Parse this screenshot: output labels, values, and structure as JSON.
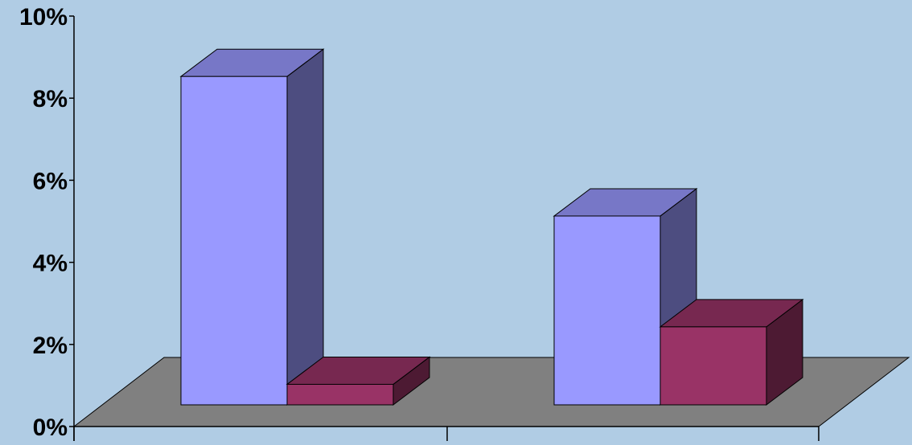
{
  "chart_data": {
    "type": "bar",
    "style": "3d-column",
    "categories": [
      "",
      ""
    ],
    "series": [
      {
        "values": [
          8.0,
          4.6
        ],
        "color": "#9999ff"
      },
      {
        "values": [
          0.5,
          1.9
        ],
        "color": "#993366"
      }
    ],
    "ylim": [
      0,
      10
    ],
    "yticks": [
      "0%",
      "2%",
      "4%",
      "6%",
      "8%",
      "10%"
    ],
    "grid": false,
    "legend": "none",
    "colors": {
      "background": "#b0cce4",
      "floor": "#808080"
    }
  }
}
